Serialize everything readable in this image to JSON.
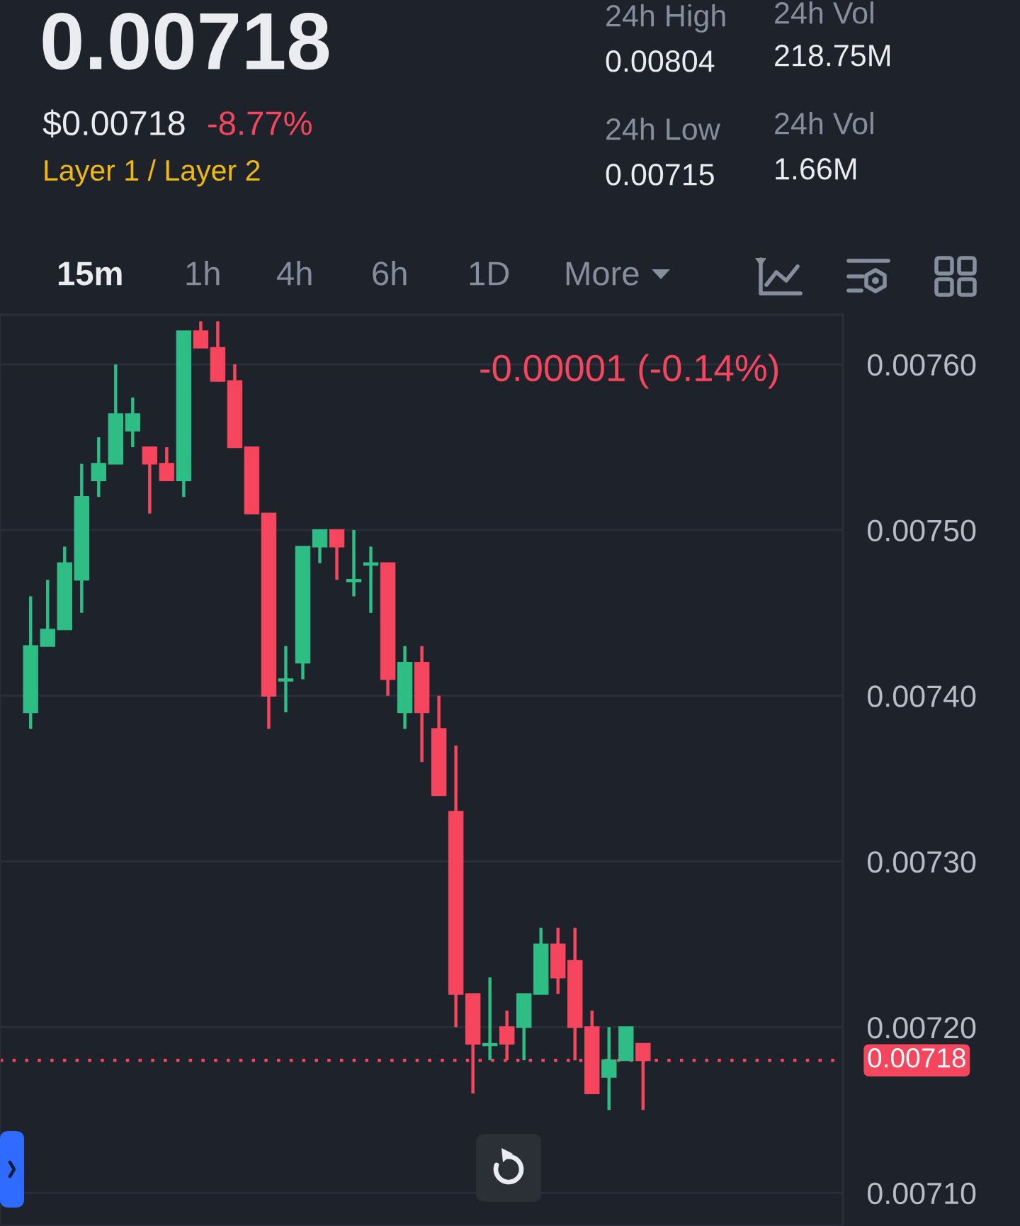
{
  "chart_data": {
    "type": "candlestick",
    "title": "0.00718",
    "annotations": [
      "$0.00718",
      "-8.77%",
      "Layer 1 / Layer 2",
      "24h High",
      "0.00804",
      "24h Low",
      "0.00715",
      "24h Vol",
      "218.75M",
      "24h Vol",
      "1.66M",
      "15m",
      "1h",
      "4h",
      "6h",
      "1D",
      "More",
      "-0.00001 (-0.14%)"
    ],
    "categories": [
      null,
      null,
      null,
      null,
      null,
      null,
      null,
      null,
      null,
      null,
      null,
      null,
      null,
      null,
      null,
      null,
      null,
      null,
      null,
      null,
      null,
      null,
      null,
      null,
      null,
      null,
      null,
      null,
      null,
      null,
      null,
      null,
      null,
      null,
      null,
      null,
      null,
      null,
      null,
      null,
      null,
      null,
      null,
      null,
      null,
      null,
      null,
      null
    ],
    "ohlc": [
      [
        0.00739,
        0.00746,
        0.00738,
        0.00743
      ],
      [
        0.00743,
        0.00747,
        0.00743,
        0.00744
      ],
      [
        0.00744,
        0.00749,
        0.00744,
        0.00748
      ],
      [
        0.00747,
        0.00754,
        0.00745,
        0.00752
      ],
      [
        0.00753,
        0.007556,
        0.00752,
        0.00754
      ],
      [
        0.00754,
        0.0076,
        0.00754,
        0.00757
      ],
      [
        0.00756,
        0.00758,
        0.00755,
        0.00757
      ],
      [
        0.00755,
        0.00755,
        0.00751,
        0.00754
      ],
      [
        0.00754,
        0.00755,
        0.00753,
        0.00753
      ],
      [
        0.00753,
        0.00762,
        0.00752,
        0.00762
      ],
      [
        0.00762,
        0.007626,
        0.00761,
        0.00761
      ],
      [
        0.00761,
        0.007626,
        0.00759,
        0.00759
      ],
      [
        0.00759,
        0.0076,
        0.00755,
        0.00755
      ],
      [
        0.00755,
        0.00755,
        0.00751,
        0.00751
      ],
      [
        0.00751,
        0.00751,
        0.00738,
        0.0074
      ],
      [
        0.007409,
        0.00743,
        0.00739,
        0.00741
      ],
      [
        0.00742,
        0.00749,
        0.00741,
        0.00749
      ],
      [
        0.00749,
        0.0075,
        0.00748,
        0.0075
      ],
      [
        0.0075,
        0.0075,
        0.00747,
        0.00749
      ],
      [
        0.007469,
        0.0075,
        0.00746,
        0.00747
      ],
      [
        0.007479,
        0.00749,
        0.00745,
        0.00748
      ],
      [
        0.00748,
        0.00748,
        0.0074,
        0.00741
      ],
      [
        0.00739,
        0.00743,
        0.00738,
        0.00742
      ],
      [
        0.00742,
        0.00743,
        0.00736,
        0.00739
      ],
      [
        0.00738,
        0.0074,
        0.00734,
        0.00734
      ],
      [
        0.00733,
        0.00737,
        0.0072,
        0.00722
      ],
      [
        0.00722,
        0.00722,
        0.00716,
        0.00719
      ],
      [
        0.007189,
        0.00723,
        0.00718,
        0.00719
      ],
      [
        0.0072,
        0.00721,
        0.00718,
        0.00719
      ],
      [
        0.0072,
        0.00722,
        0.00718,
        0.00722
      ],
      [
        0.00722,
        0.00726,
        0.00722,
        0.00725
      ],
      [
        0.00725,
        0.00726,
        0.00722,
        0.00723
      ],
      [
        0.00724,
        0.00726,
        0.00718,
        0.0072
      ],
      [
        0.0072,
        0.00721,
        0.00716,
        0.00716
      ],
      [
        0.00717,
        0.0072,
        0.00715,
        0.00718
      ],
      [
        0.00718,
        0.0072,
        0.00718,
        0.0072
      ],
      [
        0.00719,
        0.00719,
        0.00715,
        0.00718
      ],
      null,
      null,
      null,
      null,
      null,
      null,
      null,
      null,
      null,
      null,
      null
    ],
    "colors": [
      "#2ebd85",
      "#2ebd85",
      "#2ebd85",
      "#2ebd85",
      "#2ebd85",
      "#2ebd85",
      "#2ebd85",
      "#f6465d",
      "#f6465d",
      "#2ebd85",
      "#f6465d",
      "#f6465d",
      "#f6465d",
      "#f6465d",
      "#f6465d",
      "#2ebd85",
      "#2ebd85",
      "#2ebd85",
      "#f6465d",
      "#2ebd85",
      "#2ebd85",
      "#f6465d",
      "#2ebd85",
      "#f6465d",
      "#f6465d",
      "#f6465d",
      "#f6465d",
      "#2ebd85",
      "#f6465d",
      "#2ebd85",
      "#2ebd85",
      "#f6465d",
      "#f6465d",
      "#f6465d",
      "#2ebd85",
      "#2ebd85",
      "#f6465d",
      null,
      null,
      null,
      null,
      null,
      null,
      null,
      null,
      null,
      null,
      null
    ],
    "ylim": [
      0.00708,
      0.00763
    ],
    "yticks": [
      {
        "value": 0.0071,
        "label": "0.00710"
      },
      {
        "value": 0.0072,
        "label": "0.00720"
      },
      {
        "value": 0.0073,
        "label": "0.00730"
      },
      {
        "value": 0.0074,
        "label": "0.00740"
      },
      {
        "value": 0.0075,
        "label": "0.00750"
      },
      {
        "value": 0.0076,
        "label": "0.00760"
      }
    ],
    "grid": "y",
    "tick_labels": "y",
    "ref_lines": [
      {
        "axis": "y",
        "value": 0.00718,
        "label": "0.00718",
        "color": "#f6465d",
        "line_style": "dotted"
      }
    ]
  }
}
